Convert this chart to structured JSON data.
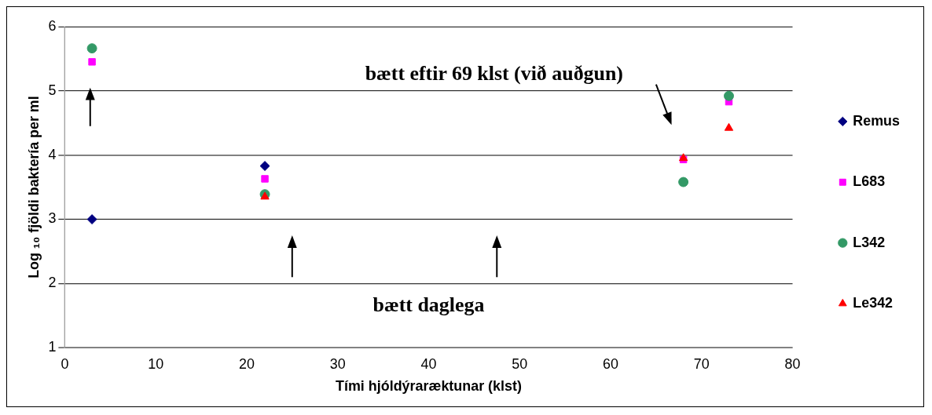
{
  "chart_data": {
    "type": "scatter",
    "xlabel": "Tími hjóldýraræktunar (klst)",
    "ylabel": "Log ₁₀ fjöldi baktería per ml",
    "x": [
      3,
      22,
      68,
      73
    ],
    "series": [
      {
        "name": "Remus",
        "color": "#000080",
        "marker": "diamond",
        "values": [
          3.0,
          3.83,
          null,
          null
        ]
      },
      {
        "name": "L683",
        "color": "#ff00ff",
        "marker": "square",
        "values": [
          5.45,
          3.63,
          3.93,
          4.83
        ]
      },
      {
        "name": "L342",
        "color": "#339966",
        "marker": "circle",
        "values": [
          5.66,
          3.39,
          3.58,
          4.92
        ]
      },
      {
        "name": "Le342",
        "color": "#ff0000",
        "marker": "triangle",
        "values": [
          null,
          3.35,
          3.95,
          4.42
        ]
      }
    ],
    "annotations": [
      "bætt eftir 69 klst (við auðgun)",
      "bætt daglega"
    ],
    "xlim": [
      0,
      80
    ],
    "xticks": [
      0,
      10,
      20,
      30,
      40,
      50,
      60,
      70,
      80
    ],
    "ylim": [
      1,
      6
    ],
    "yticks": [
      1,
      2,
      3,
      4,
      5,
      6
    ],
    "grid": "y",
    "legend": "right"
  }
}
